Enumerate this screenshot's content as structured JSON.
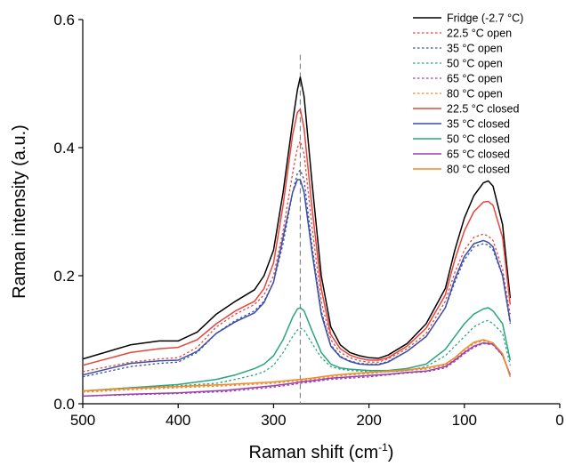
{
  "chart_data": {
    "type": "line",
    "title": "",
    "xlabel": {
      "text": "Raman shift (cm",
      "sup": "-1",
      "tail": ")"
    },
    "ylabel": "Raman intensity (a.u.)",
    "xlim": [
      500,
      0
    ],
    "ylim": [
      0.0,
      0.6
    ],
    "x_ticks": [
      500,
      400,
      300,
      200,
      100,
      0
    ],
    "x_tick_labels": [
      "500",
      "400",
      "300",
      "200",
      "100",
      "0"
    ],
    "y_ticks": [
      0.0,
      0.2,
      0.4,
      0.6
    ],
    "y_tick_labels": [
      "0.0",
      "0.2",
      "0.4",
      "0.6"
    ],
    "grid": false,
    "legend_position": "top-right",
    "annotations": [
      {
        "type": "vertical-dashed-line",
        "x": 272,
        "color": "#888888"
      }
    ],
    "series": [
      {
        "name": "Fridge (-2.7 °C)",
        "color": "#000000",
        "dash": false,
        "x": [
          500,
          450,
          420,
          400,
          380,
          360,
          340,
          320,
          310,
          300,
          290,
          280,
          275,
          272,
          268,
          260,
          250,
          240,
          230,
          220,
          210,
          200,
          190,
          180,
          160,
          140,
          120,
          110,
          100,
          90,
          80,
          75,
          70,
          60,
          52
        ],
        "y": [
          0.07,
          0.092,
          0.098,
          0.098,
          0.112,
          0.14,
          0.16,
          0.178,
          0.2,
          0.24,
          0.33,
          0.44,
          0.49,
          0.51,
          0.48,
          0.35,
          0.2,
          0.12,
          0.092,
          0.08,
          0.075,
          0.072,
          0.071,
          0.076,
          0.094,
          0.125,
          0.18,
          0.24,
          0.29,
          0.325,
          0.345,
          0.348,
          0.34,
          0.28,
          0.165
        ]
      },
      {
        "name": "22.5 °C open",
        "color": "#e8453c",
        "dash": true,
        "x": [
          500,
          450,
          420,
          400,
          380,
          360,
          340,
          320,
          310,
          300,
          290,
          280,
          275,
          272,
          268,
          260,
          250,
          240,
          230,
          220,
          210,
          200,
          190,
          180,
          160,
          140,
          120,
          110,
          100,
          90,
          80,
          75,
          70,
          60,
          52
        ],
        "y": [
          0.05,
          0.065,
          0.07,
          0.072,
          0.088,
          0.12,
          0.14,
          0.155,
          0.17,
          0.2,
          0.27,
          0.36,
          0.4,
          0.41,
          0.39,
          0.28,
          0.16,
          0.1,
          0.08,
          0.072,
          0.067,
          0.065,
          0.065,
          0.07,
          0.086,
          0.11,
          0.16,
          0.205,
          0.24,
          0.26,
          0.265,
          0.262,
          0.255,
          0.21,
          0.14
        ]
      },
      {
        "name": "35 °C open",
        "color": "#3a4fa8",
        "dash": true,
        "x": [
          500,
          450,
          420,
          400,
          380,
          360,
          340,
          320,
          310,
          300,
          290,
          280,
          275,
          272,
          268,
          260,
          250,
          240,
          230,
          220,
          210,
          200,
          190,
          180,
          160,
          140,
          120,
          110,
          100,
          90,
          80,
          75,
          70,
          60,
          52
        ],
        "y": [
          0.042,
          0.058,
          0.063,
          0.065,
          0.08,
          0.11,
          0.13,
          0.145,
          0.16,
          0.19,
          0.25,
          0.33,
          0.36,
          0.365,
          0.35,
          0.25,
          0.145,
          0.092,
          0.074,
          0.067,
          0.063,
          0.062,
          0.062,
          0.066,
          0.082,
          0.105,
          0.15,
          0.19,
          0.225,
          0.245,
          0.25,
          0.248,
          0.24,
          0.2,
          0.125
        ]
      },
      {
        "name": "50 °C open",
        "color": "#2aa57c",
        "dash": true,
        "x": [
          500,
          450,
          400,
          360,
          340,
          320,
          310,
          300,
          290,
          280,
          275,
          272,
          268,
          260,
          250,
          240,
          230,
          220,
          200,
          180,
          160,
          140,
          120,
          110,
          100,
          90,
          80,
          75,
          70,
          60,
          52
        ],
        "y": [
          0.02,
          0.025,
          0.028,
          0.032,
          0.038,
          0.045,
          0.05,
          0.06,
          0.08,
          0.105,
          0.115,
          0.118,
          0.115,
          0.095,
          0.072,
          0.058,
          0.054,
          0.052,
          0.05,
          0.05,
          0.052,
          0.058,
          0.075,
          0.09,
          0.105,
          0.12,
          0.128,
          0.13,
          0.125,
          0.11,
          0.06
        ]
      },
      {
        "name": "65 °C open",
        "color": "#9b3fb0",
        "dash": true,
        "x": [
          500,
          450,
          400,
          350,
          300,
          280,
          272,
          260,
          240,
          220,
          200,
          180,
          160,
          140,
          120,
          110,
          100,
          90,
          80,
          70,
          60,
          52
        ],
        "y": [
          0.012,
          0.014,
          0.016,
          0.019,
          0.026,
          0.03,
          0.032,
          0.034,
          0.038,
          0.04,
          0.042,
          0.045,
          0.048,
          0.05,
          0.056,
          0.066,
          0.078,
          0.088,
          0.094,
          0.092,
          0.075,
          0.045
        ]
      },
      {
        "name": "80 °C open",
        "color": "#ee8a2c",
        "dash": true,
        "x": [
          500,
          450,
          400,
          350,
          300,
          280,
          272,
          260,
          240,
          220,
          200,
          180,
          160,
          140,
          120,
          110,
          100,
          90,
          80,
          70,
          60,
          52
        ],
        "y": [
          0.018,
          0.022,
          0.025,
          0.028,
          0.032,
          0.035,
          0.036,
          0.038,
          0.042,
          0.045,
          0.047,
          0.05,
          0.052,
          0.054,
          0.06,
          0.07,
          0.082,
          0.094,
          0.098,
          0.094,
          0.078,
          0.045
        ]
      },
      {
        "name": "22.5 °C closed",
        "color": "#e8453c",
        "dash": false,
        "x": [
          500,
          450,
          420,
          400,
          380,
          360,
          340,
          320,
          310,
          300,
          290,
          280,
          275,
          272,
          268,
          260,
          250,
          240,
          230,
          220,
          210,
          200,
          190,
          180,
          160,
          140,
          120,
          110,
          100,
          90,
          80,
          75,
          70,
          60,
          52
        ],
        "y": [
          0.06,
          0.08,
          0.086,
          0.088,
          0.1,
          0.125,
          0.145,
          0.16,
          0.18,
          0.22,
          0.31,
          0.42,
          0.455,
          0.46,
          0.43,
          0.31,
          0.18,
          0.108,
          0.086,
          0.076,
          0.071,
          0.068,
          0.068,
          0.072,
          0.09,
          0.118,
          0.17,
          0.225,
          0.27,
          0.3,
          0.315,
          0.316,
          0.31,
          0.26,
          0.155
        ]
      },
      {
        "name": "35 °C closed",
        "color": "#3a4fa8",
        "dash": false,
        "x": [
          500,
          450,
          420,
          400,
          380,
          360,
          340,
          320,
          310,
          300,
          290,
          280,
          275,
          272,
          268,
          260,
          250,
          240,
          230,
          220,
          210,
          200,
          190,
          180,
          160,
          140,
          120,
          110,
          100,
          90,
          80,
          75,
          70,
          60,
          52
        ],
        "y": [
          0.045,
          0.063,
          0.067,
          0.068,
          0.082,
          0.11,
          0.128,
          0.142,
          0.158,
          0.19,
          0.26,
          0.33,
          0.35,
          0.35,
          0.33,
          0.24,
          0.14,
          0.09,
          0.073,
          0.066,
          0.062,
          0.061,
          0.061,
          0.065,
          0.082,
          0.105,
          0.15,
          0.195,
          0.23,
          0.25,
          0.255,
          0.252,
          0.245,
          0.2,
          0.128
        ]
      },
      {
        "name": "50 °C closed",
        "color": "#2aa57c",
        "dash": false,
        "x": [
          500,
          450,
          400,
          360,
          340,
          320,
          310,
          300,
          290,
          280,
          275,
          272,
          268,
          260,
          250,
          240,
          230,
          220,
          200,
          180,
          160,
          140,
          120,
          110,
          100,
          90,
          80,
          75,
          70,
          60,
          52
        ],
        "y": [
          0.02,
          0.025,
          0.03,
          0.038,
          0.045,
          0.055,
          0.062,
          0.075,
          0.1,
          0.135,
          0.148,
          0.15,
          0.145,
          0.115,
          0.08,
          0.062,
          0.056,
          0.054,
          0.052,
          0.052,
          0.055,
          0.062,
          0.085,
          0.105,
          0.125,
          0.14,
          0.148,
          0.15,
          0.145,
          0.125,
          0.068
        ]
      },
      {
        "name": "65 °C closed",
        "color": "#9b3fb0",
        "dash": false,
        "x": [
          500,
          450,
          400,
          350,
          300,
          280,
          272,
          260,
          240,
          220,
          200,
          180,
          160,
          140,
          120,
          110,
          100,
          90,
          80,
          70,
          60,
          52
        ],
        "y": [
          0.012,
          0.015,
          0.017,
          0.021,
          0.028,
          0.032,
          0.034,
          0.036,
          0.04,
          0.042,
          0.044,
          0.046,
          0.049,
          0.051,
          0.058,
          0.068,
          0.08,
          0.09,
          0.095,
          0.093,
          0.076,
          0.045
        ]
      },
      {
        "name": "80 °C closed",
        "color": "#ee8a2c",
        "dash": false,
        "x": [
          500,
          450,
          400,
          350,
          300,
          280,
          272,
          260,
          240,
          220,
          200,
          180,
          160,
          140,
          120,
          110,
          100,
          90,
          80,
          70,
          60,
          52
        ],
        "y": [
          0.02,
          0.024,
          0.027,
          0.03,
          0.034,
          0.037,
          0.038,
          0.04,
          0.044,
          0.047,
          0.049,
          0.051,
          0.053,
          0.056,
          0.062,
          0.072,
          0.085,
          0.096,
          0.1,
          0.095,
          0.078,
          0.042
        ]
      }
    ]
  }
}
